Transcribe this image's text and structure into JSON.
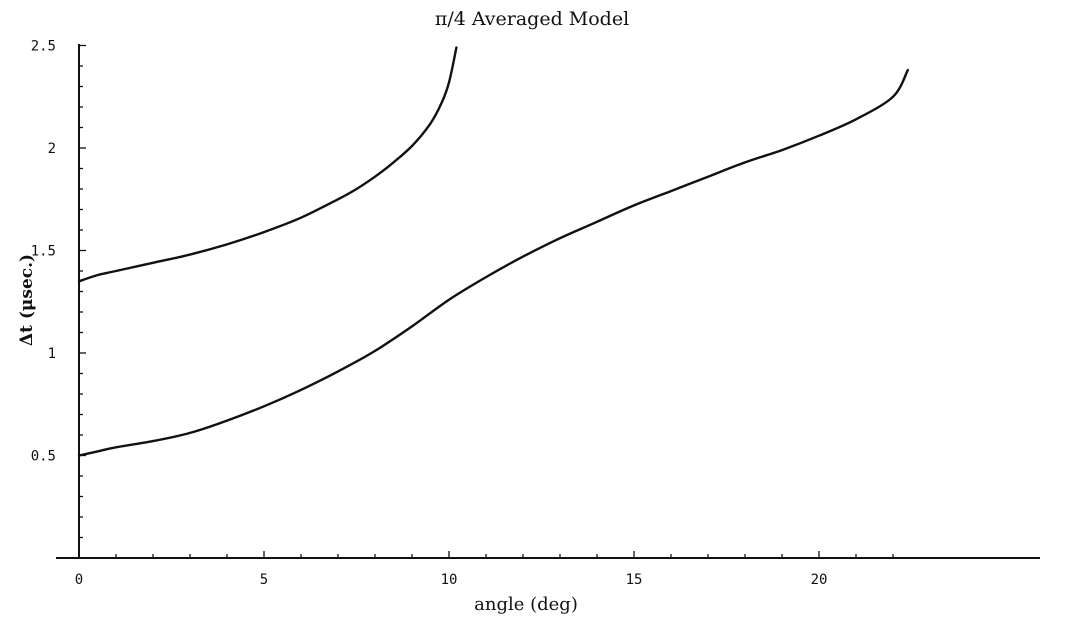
{
  "chart_data": {
    "type": "line",
    "title": "π/4 Averaged Model",
    "xlabel": "angle (deg)",
    "ylabel": "Δt (μsec.)",
    "xlim": [
      0,
      23
    ],
    "ylim": [
      0,
      2.5
    ],
    "x_ticks": [
      0,
      5,
      10,
      15,
      20
    ],
    "x_tick_labels": [
      "0",
      "5",
      "10",
      "15",
      "20"
    ],
    "x_minor_ticks": [
      1,
      2,
      3,
      4,
      6,
      7,
      8,
      9,
      11,
      12,
      13,
      14,
      16,
      17,
      18,
      19,
      21,
      22
    ],
    "y_ticks": [
      0.5,
      1,
      1.5,
      2,
      2.5
    ],
    "y_tick_labels": [
      "0.5",
      "1",
      "1.5",
      "2",
      "2.5"
    ],
    "y_minor_ticks": [
      0.1,
      0.2,
      0.3,
      0.4,
      0.6,
      0.7,
      0.8,
      0.9,
      1.1,
      1.2,
      1.3,
      1.4,
      1.6,
      1.7,
      1.8,
      1.9,
      2.1,
      2.2,
      2.3,
      2.4
    ],
    "grid": false,
    "series": [
      {
        "x": [
          0,
          0.5,
          1,
          2,
          3,
          4,
          5,
          6,
          7,
          7.5,
          8,
          8.5,
          9,
          9.5,
          9.8,
          10,
          10.2
        ],
        "y": [
          1.35,
          1.38,
          1.4,
          1.44,
          1.48,
          1.53,
          1.59,
          1.66,
          1.75,
          1.8,
          1.86,
          1.93,
          2.01,
          2.12,
          2.22,
          2.32,
          2.49
        ]
      },
      {
        "x": [
          0,
          0.5,
          1,
          2,
          3,
          4,
          5,
          6,
          7,
          8,
          9,
          10,
          11,
          12,
          13,
          14,
          15,
          16,
          17,
          18,
          19,
          20,
          21,
          22,
          22.4
        ],
        "y": [
          0.5,
          0.52,
          0.54,
          0.57,
          0.61,
          0.67,
          0.74,
          0.82,
          0.91,
          1.01,
          1.13,
          1.26,
          1.37,
          1.47,
          1.56,
          1.64,
          1.72,
          1.79,
          1.86,
          1.93,
          1.99,
          2.06,
          2.14,
          2.25,
          2.38
        ]
      }
    ]
  }
}
